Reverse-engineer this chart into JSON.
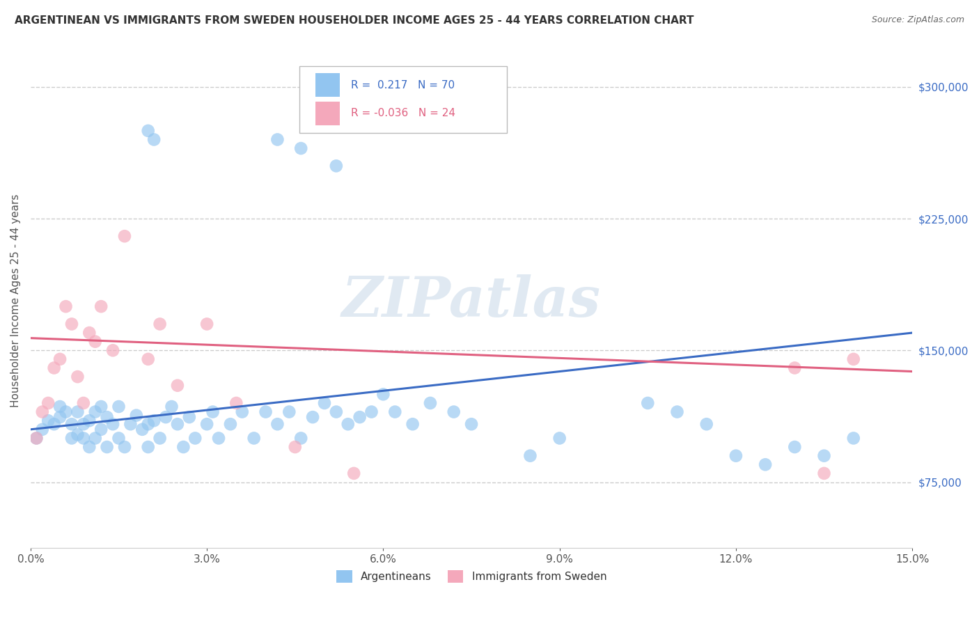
{
  "title": "ARGENTINEAN VS IMMIGRANTS FROM SWEDEN HOUSEHOLDER INCOME AGES 25 - 44 YEARS CORRELATION CHART",
  "source_text": "Source: ZipAtlas.com",
  "ylabel": "Householder Income Ages 25 - 44 years",
  "watermark": "ZIPatlas",
  "xlim": [
    0.0,
    15.0
  ],
  "ylim": [
    37500,
    318750
  ],
  "yticks": [
    75000,
    150000,
    225000,
    300000
  ],
  "ytick_labels": [
    "$75,000",
    "$150,000",
    "$225,000",
    "$300,000"
  ],
  "xticks": [
    0.0,
    3.0,
    6.0,
    9.0,
    12.0,
    15.0
  ],
  "xtick_labels": [
    "0.0%",
    "3.0%",
    "6.0%",
    "9.0%",
    "12.0%",
    "15.0%"
  ],
  "blue_r": "0.217",
  "blue_n": "70",
  "pink_r": "-0.036",
  "pink_n": "24",
  "blue_color": "#92C5F0",
  "pink_color": "#F4A8BB",
  "blue_line_color": "#3A6BC4",
  "pink_line_color": "#E06080",
  "legend1_label": "Argentineans",
  "legend2_label": "Immigrants from Sweden",
  "blue_x": [
    0.1,
    0.2,
    0.3,
    0.4,
    0.5,
    0.5,
    0.6,
    0.7,
    0.7,
    0.8,
    0.8,
    0.9,
    0.9,
    1.0,
    1.0,
    1.1,
    1.1,
    1.2,
    1.2,
    1.3,
    1.3,
    1.4,
    1.5,
    1.5,
    1.6,
    1.7,
    1.8,
    1.9,
    2.0,
    2.0,
    2.1,
    2.2,
    2.3,
    2.4,
    2.5,
    2.6,
    2.7,
    2.8,
    3.0,
    3.1,
    3.2,
    3.4,
    3.6,
    3.8,
    4.0,
    4.2,
    4.4,
    4.6,
    4.8,
    5.0,
    5.2,
    5.4,
    5.6,
    5.8,
    6.0,
    6.2,
    6.5,
    6.8,
    7.2,
    7.5,
    8.5,
    9.0,
    10.5,
    11.0,
    11.5,
    12.0,
    12.5,
    13.0,
    13.5,
    14.0
  ],
  "blue_y": [
    100000,
    105000,
    110000,
    108000,
    112000,
    118000,
    115000,
    100000,
    108000,
    102000,
    115000,
    100000,
    108000,
    95000,
    110000,
    100000,
    115000,
    105000,
    118000,
    95000,
    112000,
    108000,
    100000,
    118000,
    95000,
    108000,
    113000,
    105000,
    95000,
    108000,
    110000,
    100000,
    112000,
    118000,
    108000,
    95000,
    112000,
    100000,
    108000,
    115000,
    100000,
    108000,
    115000,
    100000,
    115000,
    108000,
    115000,
    100000,
    112000,
    120000,
    115000,
    108000,
    112000,
    115000,
    125000,
    115000,
    108000,
    120000,
    115000,
    108000,
    90000,
    100000,
    120000,
    115000,
    108000,
    90000,
    85000,
    95000,
    90000,
    100000
  ],
  "blue_y_outliers_x": [
    2.0,
    2.1,
    4.2,
    4.6,
    5.2
  ],
  "blue_y_outliers_y": [
    275000,
    270000,
    270000,
    265000,
    255000
  ],
  "pink_x": [
    0.1,
    0.2,
    0.3,
    0.4,
    0.5,
    0.6,
    0.7,
    0.8,
    0.9,
    1.0,
    1.1,
    1.2,
    1.4,
    1.6,
    2.0,
    2.2,
    2.5,
    3.0,
    3.5,
    4.5,
    5.5,
    13.0,
    13.5,
    14.0
  ],
  "pink_y": [
    100000,
    115000,
    120000,
    140000,
    145000,
    175000,
    165000,
    135000,
    120000,
    160000,
    155000,
    175000,
    150000,
    215000,
    145000,
    165000,
    130000,
    165000,
    120000,
    95000,
    80000,
    140000,
    80000,
    145000
  ],
  "blue_trendline": [
    105000,
    160000
  ],
  "pink_trendline": [
    157000,
    138000
  ]
}
